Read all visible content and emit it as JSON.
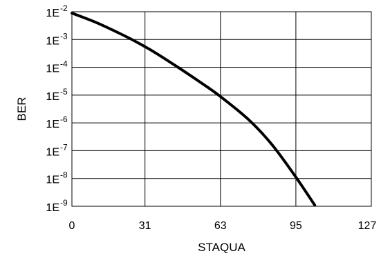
{
  "chart_data": {
    "type": "line",
    "title": "",
    "xlabel": "STAQUA",
    "ylabel": "BER",
    "x_ticks": [
      "0",
      "31",
      "63",
      "95",
      "127"
    ],
    "x_tick_values": [
      0,
      31,
      63,
      95,
      127
    ],
    "y_ticks": [
      {
        "base": "1E",
        "exp": "-2",
        "value": 0.01
      },
      {
        "base": "1E",
        "exp": "-3",
        "value": 0.001
      },
      {
        "base": "1E",
        "exp": "-4",
        "value": 0.0001
      },
      {
        "base": "1E",
        "exp": "-5",
        "value": 1e-05
      },
      {
        "base": "1E",
        "exp": "-6",
        "value": 1e-06
      },
      {
        "base": "1E",
        "exp": "-7",
        "value": 1e-07
      },
      {
        "base": "1E",
        "exp": "-8",
        "value": 1e-08
      },
      {
        "base": "1E",
        "exp": "-9",
        "value": 1e-09
      }
    ],
    "xlim": [
      0,
      127
    ],
    "ylim": [
      1e-09,
      0.01
    ],
    "yscale": "log",
    "grid": true,
    "legend": "none",
    "line_color": "#000000",
    "series": [
      {
        "x": [
          0,
          10,
          20,
          27,
          35,
          45,
          55,
          63,
          75,
          85,
          95,
          103
        ],
        "y": [
          0.0089,
          0.0042,
          0.0017,
          0.00085,
          0.00035,
          0.0001,
          2.7e-05,
          8.9e-06,
          1.3e-06,
          1.6e-07,
          1.12e-08,
          1.1e-09
        ]
      }
    ]
  }
}
